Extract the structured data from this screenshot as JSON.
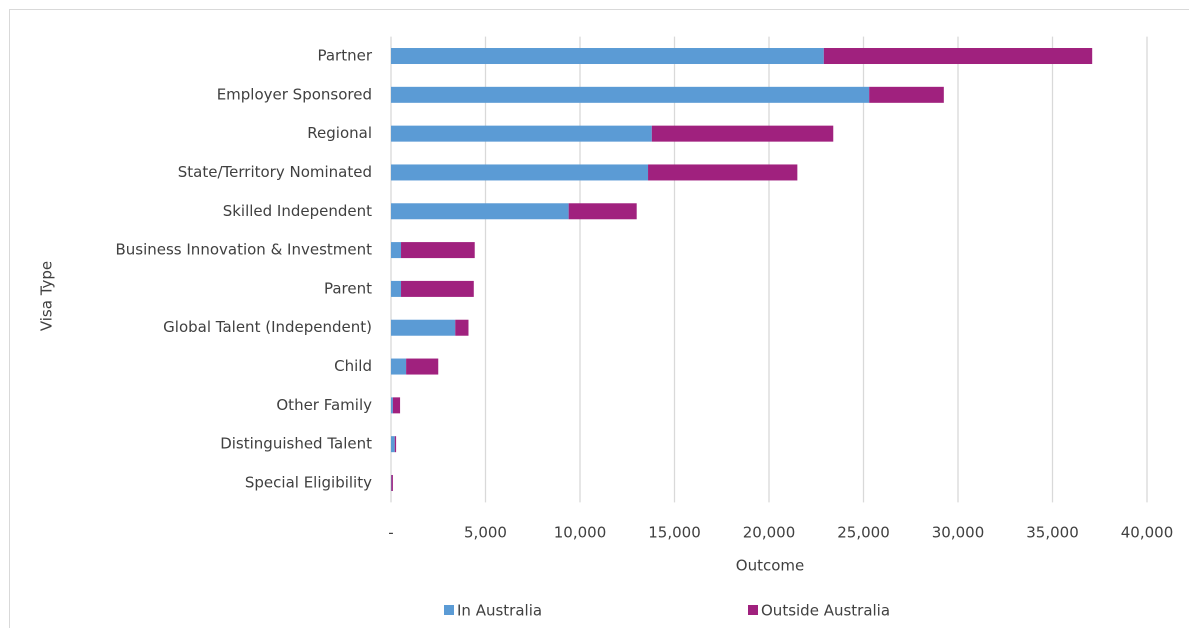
{
  "chart_data": {
    "type": "stacked_barh",
    "x_label": "Outcome",
    "y_label": "Visa Type",
    "categories": [
      "Partner",
      "Employer Sponsored",
      "Regional",
      "State/Territory Nominated",
      "Skilled Independent",
      "Business Innovation & Investment",
      "Parent",
      "Global Talent (Independent)",
      "Child",
      "Other Family",
      "Distinguished Talent",
      "Special Eligibility"
    ],
    "series": [
      {
        "name": "In Australia",
        "color": "#5b9bd5",
        "values": [
          22900,
          25300,
          13800,
          13600,
          9400,
          530,
          530,
          3400,
          800,
          100,
          200,
          20
        ]
      },
      {
        "name": "Outside Australia",
        "color": "#a0217e",
        "values": [
          14200,
          3950,
          9600,
          7900,
          3600,
          3900,
          3850,
          700,
          1700,
          380,
          70,
          80
        ]
      }
    ],
    "xlim": [
      0,
      40000
    ],
    "xticks": [
      {
        "value": 0,
        "label": "-"
      },
      {
        "value": 5000,
        "label": "5,000"
      },
      {
        "value": 10000,
        "label": "10,000"
      },
      {
        "value": 15000,
        "label": "15,000"
      },
      {
        "value": 20000,
        "label": "20,000"
      },
      {
        "value": 25000,
        "label": "25,000"
      },
      {
        "value": 30000,
        "label": "30,000"
      },
      {
        "value": 35000,
        "label": "35,000"
      },
      {
        "value": 40000,
        "label": "40,000"
      }
    ],
    "grid": true,
    "legend": "bottom"
  }
}
